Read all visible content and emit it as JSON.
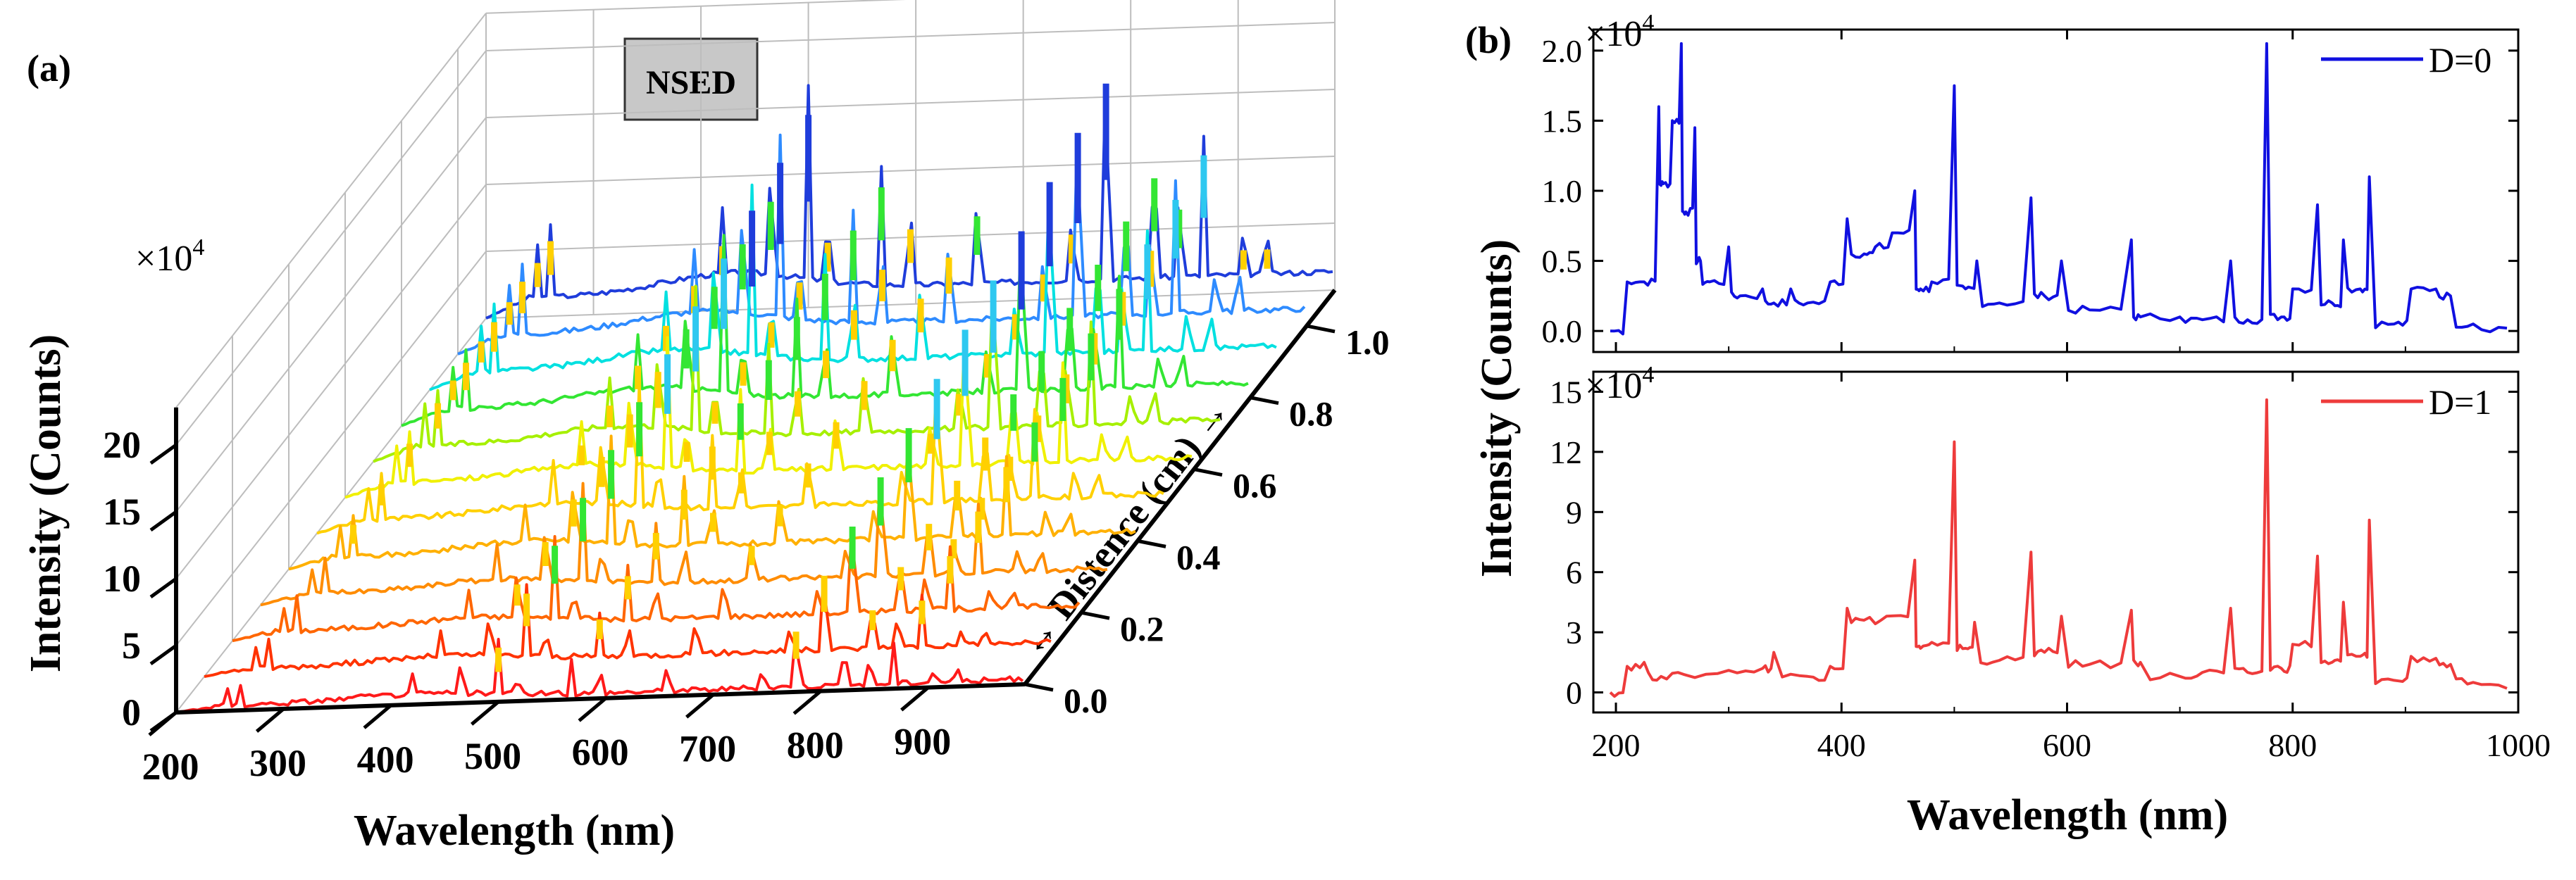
{
  "panel_a": {
    "label": "(a)",
    "tag": "NSED",
    "multiplier": "×10",
    "multiplier_exp": "4",
    "ylabel": "Intensity (Counts)",
    "xlabel": "Wavelength (nm)",
    "zlabel": "↔ Distence (cm) →",
    "colors": [
      "#ff1a1a",
      "#ff1a1a",
      "#ff3300",
      "#ff6600",
      "#ff8c00",
      "#ffb000",
      "#ffd000",
      "#f0f000",
      "#a6f000",
      "#33e633",
      "#00e0e0",
      "#2e8bff",
      "#1f3ddb"
    ]
  },
  "panel_b": {
    "label": "(b)",
    "multiplier": "×10",
    "multiplier_exp": "4",
    "ylabel": "Intensity (Counts)",
    "xlabel": "Wavelength (nm)"
  },
  "chart_data": [
    {
      "id": "a",
      "type": "line",
      "title": "NSED",
      "xlabel": "Wavelength (nm)",
      "ylabel": "Intensity (Counts)",
      "zlabel": "Distence (cm)",
      "xticks": [
        "200",
        "300",
        "400",
        "500",
        "600",
        "700",
        "800",
        "900"
      ],
      "yticks": [
        "0",
        "5",
        "10",
        "15",
        "20"
      ],
      "zticks": [
        "0.0",
        "0.2",
        "0.4",
        "0.6",
        "0.8",
        "1.0"
      ],
      "xlim": [
        200,
        990
      ],
      "ylim": [
        0,
        22
      ],
      "zlim": [
        0,
        1.1
      ],
      "y_multiplier": "×10^4",
      "series_distances": [
        0,
        0.1,
        0.2,
        0.3,
        0.4,
        0.5,
        0.6,
        0.7,
        0.8,
        0.9,
        1.0,
        1.1
      ],
      "peak_wavelengths": [
        248,
        260,
        420,
        465,
        500,
        518,
        568,
        595,
        657,
        745,
        777,
        822,
        845,
        868,
        905,
        927
      ],
      "peak_max_by_distance": [
        4.5,
        6,
        7,
        8,
        9,
        10,
        11,
        12,
        13,
        14,
        15,
        16
      ]
    },
    {
      "id": "b-top",
      "type": "line",
      "legend": "D=0",
      "legend_position": "top-right",
      "color": "#1010e0",
      "xlim": [
        180,
        1000
      ],
      "ylim": [
        -0.15,
        2.15
      ],
      "ylabel": "Intensity (Counts)",
      "y_multiplier": "×10^4",
      "yticks": [
        "0.0",
        "0.5",
        "1.0",
        "1.5",
        "2.0"
      ],
      "x": [
        195,
        210,
        225,
        238,
        242,
        250,
        258,
        262,
        270,
        275,
        283,
        300,
        310,
        330,
        340,
        355,
        370,
        390,
        405,
        420,
        430,
        445,
        465,
        470,
        480,
        500,
        510,
        520,
        540,
        568,
        580,
        595,
        620,
        657,
        665,
        700,
        720,
        745,
        760,
        777,
        790,
        800,
        822,
        835,
        845,
        860,
        868,
        890,
        905,
        927,
        940,
        960,
        990
      ],
      "y": [
        0.0,
        0.35,
        0.35,
        1.6,
        1.05,
        1.5,
        2.05,
        0.85,
        1.45,
        0.5,
        0.35,
        0.6,
        0.25,
        0.3,
        0.2,
        0.3,
        0.2,
        0.35,
        0.8,
        0.55,
        0.6,
        0.7,
        1.0,
        0.3,
        0.35,
        1.75,
        0.3,
        0.5,
        0.2,
        0.95,
        0.25,
        0.5,
        0.15,
        0.65,
        0.1,
        0.1,
        0.08,
        0.5,
        0.08,
        2.05,
        0.1,
        0.3,
        0.9,
        0.2,
        0.65,
        0.3,
        1.1,
        0.05,
        0.3,
        0.3,
        0.25,
        0.05,
        0.02
      ]
    },
    {
      "id": "b-bottom",
      "type": "line",
      "legend": "D=1",
      "legend_position": "top-right",
      "color": "#ee3b3b",
      "xlim": [
        180,
        1000
      ],
      "ylim": [
        -1,
        16
      ],
      "xlabel": "Wavelength (nm)",
      "y_multiplier": "×10^4",
      "xticks": [
        "200",
        "400",
        "600",
        "800",
        "1000"
      ],
      "yticks": [
        "0",
        "3",
        "6",
        "9",
        "12",
        "15"
      ],
      "x": [
        195,
        210,
        225,
        240,
        260,
        300,
        330,
        340,
        370,
        390,
        405,
        420,
        440,
        465,
        470,
        480,
        500,
        510,
        518,
        540,
        568,
        580,
        595,
        620,
        657,
        665,
        700,
        720,
        745,
        760,
        777,
        790,
        800,
        822,
        835,
        845,
        860,
        868,
        890,
        905,
        927,
        940,
        960,
        990
      ],
      "y": [
        0.0,
        1.3,
        1.5,
        0.8,
        0.9,
        1.1,
        1.2,
        2.0,
        0.8,
        1.3,
        4.2,
        3.6,
        3.8,
        6.6,
        2.2,
        2.5,
        12.5,
        2.2,
        3.5,
        1.6,
        7.0,
        2.0,
        3.8,
        1.4,
        4.1,
        1.5,
        0.8,
        1.0,
        4.2,
        1.0,
        14.6,
        1.2,
        2.4,
        6.8,
        1.5,
        4.5,
        1.8,
        8.6,
        0.6,
        1.8,
        1.7,
        1.4,
        0.5,
        0.2
      ]
    }
  ]
}
